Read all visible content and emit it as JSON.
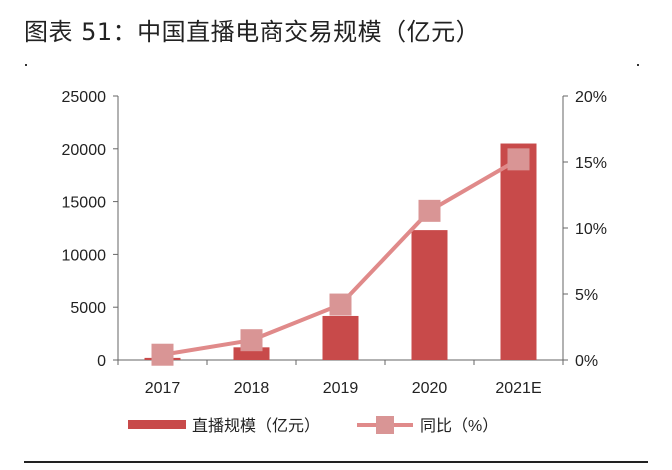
{
  "title": "图表 51：中国直播电商交易规模（亿元）",
  "chart_data": {
    "type": "bar+line",
    "title": "图表 51：中国直播电商交易规模（亿元）",
    "categories": [
      "2017",
      "2018",
      "2019",
      "2020",
      "2021E"
    ],
    "series": [
      {
        "name": "直播规模（亿元）",
        "type": "bar",
        "axis": "left",
        "values": [
          200,
          1200,
          4170,
          12300,
          20500
        ],
        "color": "#c84a4a"
      },
      {
        "name": "同比（%）",
        "type": "line",
        "axis": "right",
        "values": [
          0.4,
          1.5,
          4.2,
          11.3,
          15.2
        ],
        "color": "#e08a8a"
      }
    ],
    "y_left": {
      "range": [
        0,
        25000
      ],
      "ticks": [
        "0",
        "5000",
        "10000",
        "15000",
        "20000",
        "25000"
      ]
    },
    "y_right": {
      "range": [
        0,
        20
      ],
      "ticks": [
        "0%",
        "5%",
        "10%",
        "15%",
        "20%"
      ]
    },
    "grid": false,
    "legend_placement": "bottom"
  }
}
